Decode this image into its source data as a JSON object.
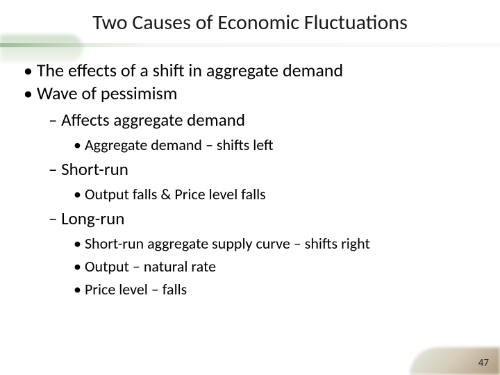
{
  "title": "Two Causes of Economic Fluctuations",
  "bullets": {
    "b1_1": "The effects of a shift in aggregate demand",
    "b1_2": "Wave of pessimism",
    "b2_1": "Affects aggregate demand",
    "b3_1": "Aggregate demand – shifts left",
    "b2_2": "Short-run",
    "b3_2": "Output falls & Price level falls",
    "b2_3": "Long-run",
    "b3_3": "Short-run aggregate supply curve – shifts right",
    "b3_4": "Output – natural rate",
    "b3_5": "Price level – falls"
  },
  "page_number": "47",
  "colors": {
    "title_color": "#1a1a1a",
    "text_color": "#000000",
    "background": "#ffffff",
    "accent_green": "#8aa878",
    "accent_brown": "#a07a4a"
  },
  "fonts": {
    "title_size": 30,
    "level1_size": 26,
    "level2_size": 25,
    "level3_size": 22,
    "pagenum_size": 15
  }
}
